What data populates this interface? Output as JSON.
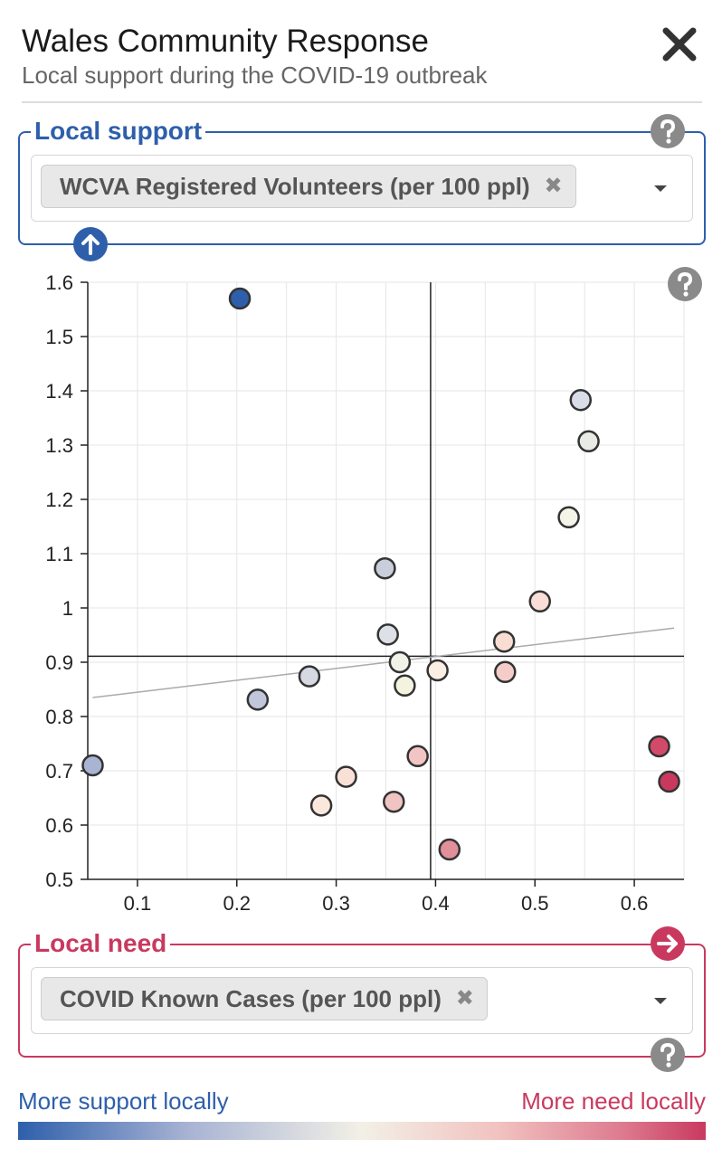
{
  "header": {
    "title": "Wales Community Response",
    "subtitle": "Local support during the COVID-19 outbreak"
  },
  "icons": {
    "close": "close-icon",
    "help": "question-circle-icon",
    "swap_up": "arrow-up-circle-icon",
    "swap_right": "arrow-right-circle-icon",
    "remove": "x-icon",
    "dropdown": "caret-down-icon"
  },
  "support_panel": {
    "legend": "Local support",
    "selected": "WCVA Registered Volunteers (per 100 ppl)",
    "remove_glyph": "✖"
  },
  "need_panel": {
    "legend": "Local need",
    "selected": "COVID Known Cases (per 100 ppl)",
    "remove_glyph": "✖"
  },
  "scale": {
    "left_label": "More support locally",
    "right_label": "More need locally",
    "colors": {
      "support": "#2e5fab",
      "need": "#c9395f"
    }
  },
  "chart_data": {
    "type": "scatter",
    "xlabel": "",
    "ylabel": "",
    "xlim": [
      0.05,
      0.65
    ],
    "ylim": [
      0.5,
      1.6
    ],
    "xticks": [
      "0.1",
      "0.2",
      "0.3",
      "0.4",
      "0.5",
      "0.6"
    ],
    "yticks": [
      "0.5",
      "0.6",
      "0.7",
      "0.8",
      "0.9",
      "1",
      "1.1",
      "1.2",
      "1.3",
      "1.4",
      "1.5",
      "1.6"
    ],
    "grid": true,
    "median_x": 0.395,
    "median_y": 0.911,
    "trendline": [
      [
        0.055,
        0.835
      ],
      [
        0.64,
        0.963
      ]
    ],
    "points": [
      {
        "x": 0.203,
        "y": 1.57,
        "color": "#2e5fab"
      },
      {
        "x": 0.546,
        "y": 1.383,
        "color": "#d8dde8"
      },
      {
        "x": 0.554,
        "y": 1.307,
        "color": "#e8eae6"
      },
      {
        "x": 0.534,
        "y": 1.167,
        "color": "#f4f4e8"
      },
      {
        "x": 0.349,
        "y": 1.073,
        "color": "#c9ceda"
      },
      {
        "x": 0.505,
        "y": 1.012,
        "color": "#f8ded6"
      },
      {
        "x": 0.352,
        "y": 0.951,
        "color": "#dde0e7"
      },
      {
        "x": 0.469,
        "y": 0.938,
        "color": "#f8ddd3"
      },
      {
        "x": 0.364,
        "y": 0.9,
        "color": "#f1f2e8"
      },
      {
        "x": 0.402,
        "y": 0.885,
        "color": "#fbefe4"
      },
      {
        "x": 0.47,
        "y": 0.882,
        "color": "#f5cdc8"
      },
      {
        "x": 0.273,
        "y": 0.874,
        "color": "#d6d9e2"
      },
      {
        "x": 0.369,
        "y": 0.857,
        "color": "#f4f3df"
      },
      {
        "x": 0.221,
        "y": 0.831,
        "color": "#c1c6da"
      },
      {
        "x": 0.625,
        "y": 0.745,
        "color": "#d24a6a"
      },
      {
        "x": 0.382,
        "y": 0.727,
        "color": "#f2c5c4"
      },
      {
        "x": 0.055,
        "y": 0.71,
        "color": "#a9b4d4"
      },
      {
        "x": 0.31,
        "y": 0.689,
        "color": "#f9e1d8"
      },
      {
        "x": 0.635,
        "y": 0.68,
        "color": "#c9395f"
      },
      {
        "x": 0.358,
        "y": 0.643,
        "color": "#f0c4c2"
      },
      {
        "x": 0.285,
        "y": 0.636,
        "color": "#fbe8dd"
      },
      {
        "x": 0.414,
        "y": 0.555,
        "color": "#e1909b"
      }
    ]
  }
}
